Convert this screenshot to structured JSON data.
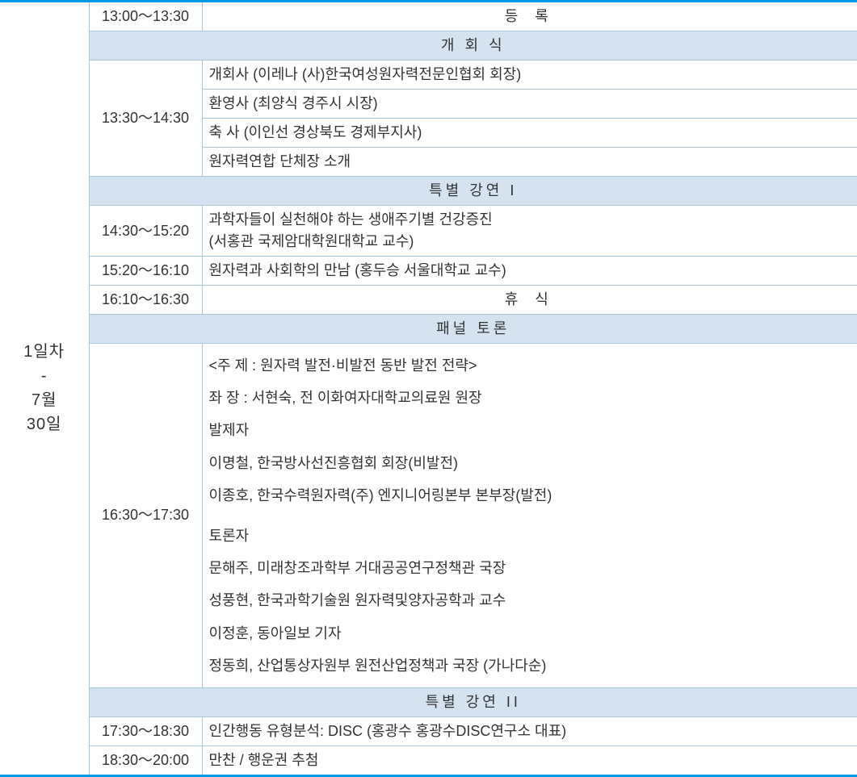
{
  "day": {
    "label_line1": "1일차",
    "label_line2": "-",
    "label_line3": "7월",
    "label_line4": "30일"
  },
  "colors": {
    "accent": "#0099e5",
    "border": "#a8c8e0",
    "header_bg": "#d5e3f0",
    "text": "#333333"
  },
  "rows": [
    {
      "time": "13:00～13:30",
      "label": "등  록",
      "type": "centered"
    },
    {
      "type": "header",
      "label": "개 회 식"
    },
    {
      "time": "13:30～14:30",
      "type": "timespan",
      "items": [
        "개회사 (이레나 (사)한국여성원자력전문인협회 회장)",
        "환영사 (최양식 경주시 시장)",
        "축  사 (이인선 경상북도 경제부지사)",
        "원자력연합 단체장 소개"
      ]
    },
    {
      "type": "header",
      "label": "특별 강연 I"
    },
    {
      "time": "14:30～15:20",
      "type": "text",
      "lines": [
        "과학자들이 실천해야 하는 생애주기별 건강증진",
        "(서홍관 국제암대학원대학교 교수)"
      ]
    },
    {
      "time": "15:20～16:10",
      "type": "text",
      "label": "원자력과 사회학의 만남 (홍두승 서울대학교 교수)"
    },
    {
      "time": "16:10～16:30",
      "type": "centered",
      "label": "휴  식"
    },
    {
      "type": "header",
      "label": "패널 토론"
    },
    {
      "time": "16:30～17:30",
      "type": "panel",
      "lines": [
        "<주  제 : 원자력 발전·비발전 동반 발전 전략>",
        "좌  장 : 서현숙, 전 이화여자대학교의료원 원장",
        "발제자",
        "이명철, 한국방사선진흥협회 회장(비발전)",
        "이종호, 한국수력원자력(주) 엔지니어링본부 본부장(발전)",
        "",
        "토론자",
        "문해주, 미래창조과학부 거대공공연구정책관 국장",
        "성풍현, 한국과학기술원 원자력및양자공학과 교수",
        "이정훈, 동아일보 기자",
        "정동희, 산업통상자원부 원전산업정책과 국장 (가나다순)"
      ]
    },
    {
      "type": "header",
      "label": "특별 강연 II"
    },
    {
      "time": "17:30～18:30",
      "type": "text",
      "label": "인간행동 유형분석: DISC (홍광수 홍광수DISC연구소 대표)"
    },
    {
      "time": "18:30～20:00",
      "type": "text",
      "label": "만찬  /  행운권 추첨"
    }
  ]
}
